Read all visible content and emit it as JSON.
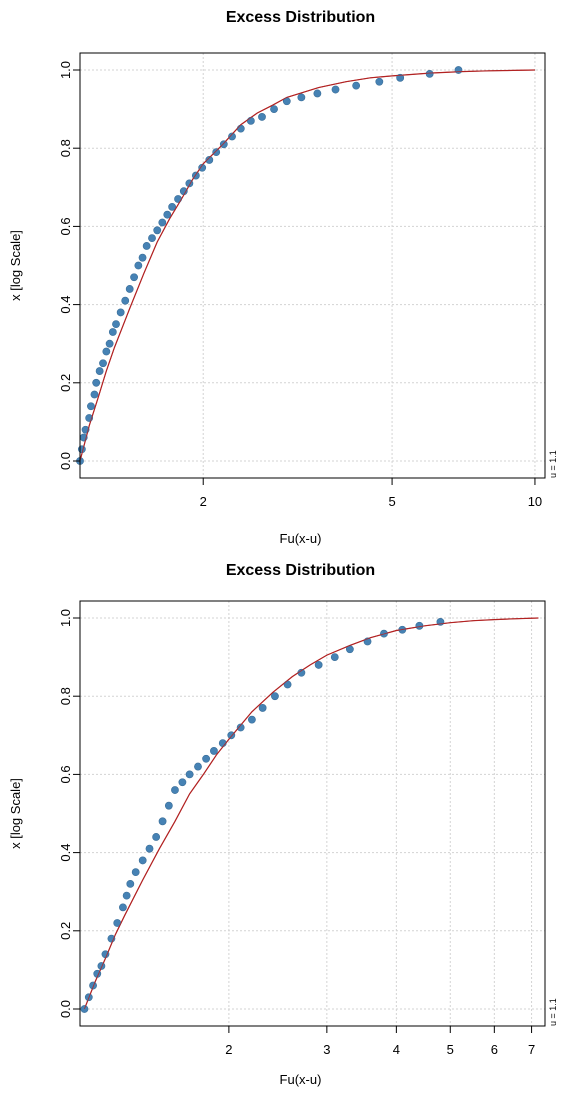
{
  "colors": {
    "points": "#4682b4",
    "curve": "#b22222",
    "grid": "#d3d3d3"
  },
  "chart_data": [
    {
      "type": "scatter",
      "title": "Excess Distribution",
      "xlabel": "Fu(x-u)",
      "ylabel": "x [log Scale]",
      "x_scale": "log",
      "xlim": [
        1.1,
        10.5
      ],
      "ylim": [
        0,
        1
      ],
      "x_ticks": [
        2,
        5,
        10
      ],
      "x_tick_labels": [
        "2",
        "5",
        "10"
      ],
      "y_ticks": [
        0,
        0.2,
        0.4,
        0.6,
        0.8,
        1.0
      ],
      "y_tick_labels": [
        "0.0",
        "0.2",
        "0.4",
        "0.6",
        "0.8",
        "1.0"
      ],
      "margin_note": "u = 1.1",
      "grid": true,
      "series": [
        {
          "kind": "points",
          "x": [
            1.1,
            1.11,
            1.12,
            1.13,
            1.15,
            1.16,
            1.18,
            1.19,
            1.21,
            1.23,
            1.25,
            1.27,
            1.29,
            1.31,
            1.34,
            1.37,
            1.4,
            1.43,
            1.46,
            1.49,
            1.52,
            1.56,
            1.6,
            1.64,
            1.68,
            1.72,
            1.77,
            1.82,
            1.87,
            1.93,
            1.99,
            2.06,
            2.13,
            2.21,
            2.3,
            2.4,
            2.52,
            2.66,
            2.82,
            3.0,
            3.22,
            3.48,
            3.8,
            4.2,
            4.7,
            5.2,
            6.0,
            6.9
          ],
          "y": [
            0.0,
            0.03,
            0.06,
            0.08,
            0.11,
            0.14,
            0.17,
            0.2,
            0.23,
            0.25,
            0.28,
            0.3,
            0.33,
            0.35,
            0.38,
            0.41,
            0.44,
            0.47,
            0.5,
            0.52,
            0.55,
            0.57,
            0.59,
            0.61,
            0.63,
            0.65,
            0.67,
            0.69,
            0.71,
            0.73,
            0.75,
            0.77,
            0.79,
            0.81,
            0.83,
            0.85,
            0.87,
            0.88,
            0.9,
            0.92,
            0.93,
            0.94,
            0.95,
            0.96,
            0.97,
            0.98,
            0.99,
            1.0
          ]
        },
        {
          "kind": "fitted-curve",
          "x": [
            1.1,
            1.15,
            1.2,
            1.25,
            1.3,
            1.4,
            1.5,
            1.6,
            1.7,
            1.8,
            1.9,
            2.0,
            2.2,
            2.4,
            2.6,
            2.8,
            3.0,
            3.5,
            4.0,
            4.5,
            5.0,
            6.0,
            7.0,
            8.0,
            9.0,
            10.0
          ],
          "y": [
            0.0,
            0.09,
            0.16,
            0.23,
            0.29,
            0.39,
            0.48,
            0.56,
            0.62,
            0.67,
            0.72,
            0.76,
            0.81,
            0.86,
            0.89,
            0.91,
            0.93,
            0.955,
            0.97,
            0.98,
            0.985,
            0.992,
            0.996,
            0.998,
            0.999,
            1.0
          ]
        }
      ]
    },
    {
      "type": "scatter",
      "title": "Excess Distribution",
      "xlabel": "Fu(x-u)",
      "ylabel": "x [log Scale]",
      "x_scale": "log",
      "xlim": [
        1.08,
        7.4
      ],
      "ylim": [
        0,
        1
      ],
      "x_ticks": [
        2,
        3,
        4,
        5,
        6,
        7
      ],
      "x_tick_labels": [
        "2",
        "3",
        "4",
        "5",
        "6",
        "7"
      ],
      "y_ticks": [
        0,
        0.2,
        0.4,
        0.6,
        0.8,
        1.0
      ],
      "y_tick_labels": [
        "0.0",
        "0.2",
        "0.4",
        "0.6",
        "0.8",
        "1.0"
      ],
      "margin_note": "u = 1.1",
      "grid": true,
      "series": [
        {
          "kind": "points",
          "x": [
            1.1,
            1.12,
            1.14,
            1.16,
            1.18,
            1.2,
            1.23,
            1.26,
            1.29,
            1.31,
            1.33,
            1.36,
            1.4,
            1.44,
            1.48,
            1.52,
            1.56,
            1.6,
            1.65,
            1.7,
            1.76,
            1.82,
            1.88,
            1.95,
            2.02,
            2.1,
            2.2,
            2.3,
            2.42,
            2.55,
            2.7,
            2.9,
            3.1,
            3.3,
            3.55,
            3.8,
            4.1,
            4.4,
            4.8
          ],
          "y": [
            0.0,
            0.03,
            0.06,
            0.09,
            0.11,
            0.14,
            0.18,
            0.22,
            0.26,
            0.29,
            0.32,
            0.35,
            0.38,
            0.41,
            0.44,
            0.48,
            0.52,
            0.56,
            0.58,
            0.6,
            0.62,
            0.64,
            0.66,
            0.68,
            0.7,
            0.72,
            0.74,
            0.77,
            0.8,
            0.83,
            0.86,
            0.88,
            0.9,
            0.92,
            0.94,
            0.96,
            0.97,
            0.98,
            0.99
          ]
        },
        {
          "kind": "fitted-curve",
          "x": [
            1.1,
            1.15,
            1.2,
            1.25,
            1.3,
            1.4,
            1.5,
            1.6,
            1.7,
            1.8,
            1.9,
            2.0,
            2.2,
            2.4,
            2.6,
            2.8,
            3.0,
            3.3,
            3.6,
            4.0,
            4.5,
            5.0,
            5.5,
            6.0,
            6.5,
            7.2
          ],
          "y": [
            0.0,
            0.07,
            0.13,
            0.19,
            0.24,
            0.33,
            0.41,
            0.48,
            0.55,
            0.6,
            0.65,
            0.69,
            0.76,
            0.81,
            0.85,
            0.88,
            0.905,
            0.93,
            0.95,
            0.968,
            0.98,
            0.988,
            0.993,
            0.996,
            0.998,
            1.0
          ]
        }
      ]
    }
  ]
}
